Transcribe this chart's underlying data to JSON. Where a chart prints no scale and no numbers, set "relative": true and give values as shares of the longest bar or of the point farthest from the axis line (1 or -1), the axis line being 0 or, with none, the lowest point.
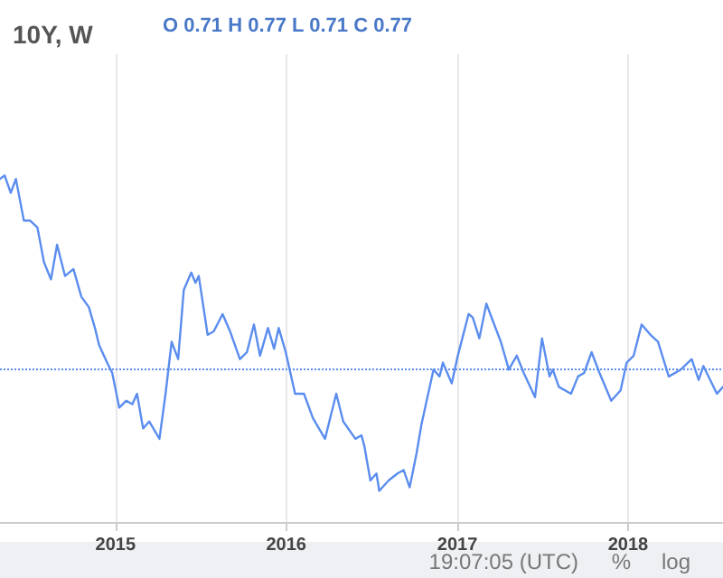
{
  "chart_data": {
    "type": "line",
    "title": "10Y, W",
    "relative": true,
    "annotations": [
      "O 0.71 H 0.77 L 0.71 C 0.77",
      "19:07:05 (UTC)",
      "%",
      "log"
    ],
    "x": [
      "2014-04-29",
      "2014-05-09",
      "2014-05-22",
      "2014-06-02",
      "2014-06-19",
      "2014-07-02",
      "2014-07-18",
      "2014-08-01",
      "2014-08-16",
      "2014-08-29",
      "2014-09-15",
      "2014-10-03",
      "2014-10-20",
      "2014-11-05",
      "2014-11-18",
      "2014-11-27",
      "2014-12-14",
      "2014-12-25",
      "2015-01-09",
      "2015-01-24",
      "2015-02-06",
      "2015-02-16",
      "2015-03-01",
      "2015-03-14",
      "2015-04-05",
      "2015-04-18",
      "2015-05-01",
      "2015-05-15",
      "2015-05-27",
      "2015-06-12",
      "2015-06-21",
      "2015-06-28",
      "2015-07-17",
      "2015-07-30",
      "2015-08-18",
      "2015-09-03",
      "2015-09-24",
      "2015-10-09",
      "2015-10-24",
      "2015-11-06",
      "2015-11-23",
      "2015-12-06",
      "2015-12-16",
      "2015-12-31",
      "2016-01-20",
      "2016-02-08",
      "2016-02-27",
      "2016-03-24",
      "2016-04-17",
      "2016-05-02",
      "2016-05-28",
      "2016-06-10",
      "2016-06-16",
      "2016-06-29",
      "2016-07-12",
      "2016-07-18",
      "2016-08-07",
      "2016-08-26",
      "2016-09-08",
      "2016-09-21",
      "2016-10-06",
      "2016-10-16",
      "2016-10-29",
      "2016-11-11",
      "2016-11-24",
      "2016-12-01",
      "2016-12-20",
      "2017-01-02",
      "2017-01-25",
      "2017-02-03",
      "2017-02-17",
      "2017-03-04",
      "2017-03-18",
      "2017-04-04",
      "2017-04-21",
      "2017-05-08",
      "2017-05-23",
      "2017-06-16",
      "2017-07-01",
      "2017-07-17",
      "2017-07-24",
      "2017-08-06",
      "2017-09-01",
      "2017-09-16",
      "2017-09-29",
      "2017-10-15",
      "2017-11-01",
      "2017-11-26",
      "2017-12-16",
      "2017-12-29",
      "2018-01-13",
      "2018-01-30",
      "2018-02-18",
      "2018-03-06",
      "2018-03-29",
      "2018-04-24",
      "2018-05-17",
      "2018-06-01",
      "2018-06-11",
      "2018-07-10",
      "2018-07-23"
    ],
    "series": [
      {
        "color": "#5b8def",
        "values": [
          0.99,
          1,
          0.95,
          0.99,
          0.87,
          0.87,
          0.85,
          0.75,
          0.7,
          0.8,
          0.71,
          0.73,
          0.65,
          0.62,
          0.56,
          0.51,
          0.46,
          0.43,
          0.33,
          0.35,
          0.34,
          0.37,
          0.27,
          0.29,
          0.24,
          0.37,
          0.52,
          0.47,
          0.67,
          0.72,
          0.69,
          0.71,
          0.54,
          0.55,
          0.6,
          0.55,
          0.47,
          0.49,
          0.57,
          0.48,
          0.56,
          0.5,
          0.56,
          0.49,
          0.37,
          0.37,
          0.3,
          0.24,
          0.37,
          0.29,
          0.24,
          0.25,
          0.22,
          0.12,
          0.14,
          0.09,
          0.12,
          0.14,
          0.15,
          0.1,
          0.2,
          0.28,
          0.36,
          0.44,
          0.42,
          0.46,
          0.4,
          0.48,
          0.6,
          0.59,
          0.53,
          0.63,
          0.58,
          0.52,
          0.44,
          0.48,
          0.43,
          0.36,
          0.53,
          0.42,
          0.44,
          0.39,
          0.37,
          0.42,
          0.43,
          0.49,
          0.43,
          0.35,
          0.38,
          0.46,
          0.48,
          0.57,
          0.54,
          0.52,
          0.42,
          0.44,
          0.47,
          0.41,
          0.45,
          0.37,
          0.39
        ]
      }
    ],
    "xlim": [
      "2014-04-29",
      "2018-07-23"
    ],
    "xticks": [
      "2015",
      "2016",
      "2017",
      "2018"
    ],
    "ref_lines": [
      {
        "axis": "y",
        "value": 0.44,
        "color": "#5b8def",
        "line_style": "dotted"
      }
    ],
    "grid": "x",
    "marker": "none",
    "line_style": "solid"
  }
}
